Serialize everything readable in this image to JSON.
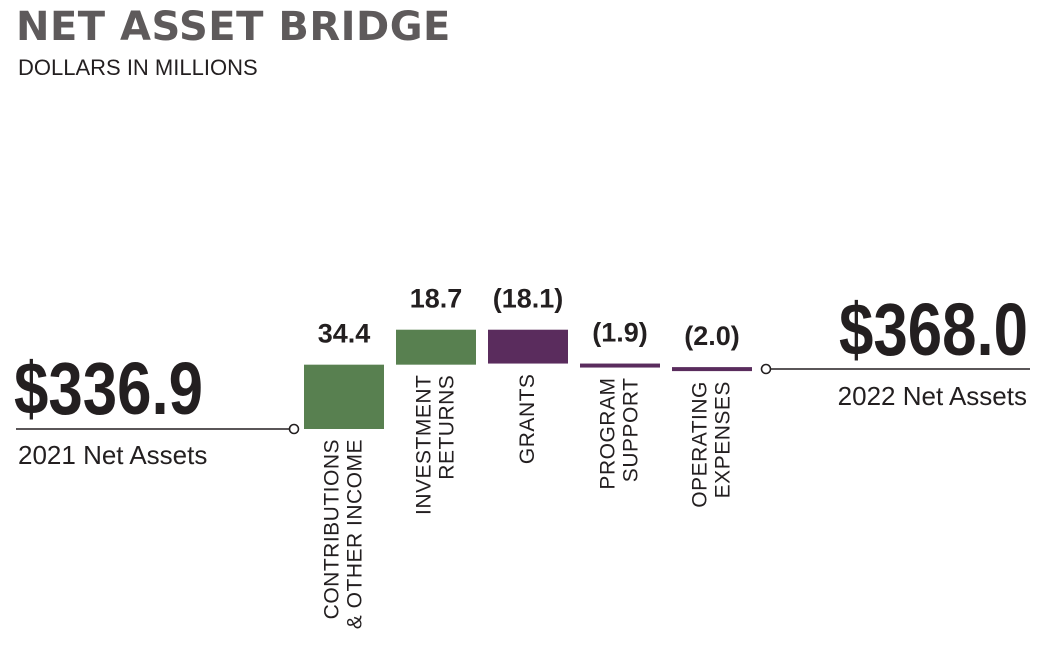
{
  "title": "NET ASSET BRIDGE",
  "subtitle": "DOLLARS IN MILLIONS",
  "colors": {
    "increase": "#588050",
    "decrease": "#5a2c5d",
    "text": "#231f20",
    "title": "#5e5a5b",
    "line": "#231f20"
  },
  "chart_data": {
    "type": "bar",
    "subtype": "waterfall",
    "title": "NET ASSET BRIDGE",
    "subtitle": "DOLLARS IN MILLIONS",
    "units": "DOLLARS IN MILLIONS",
    "start": {
      "label": "2021 Net Assets",
      "value": 336.9,
      "display": "$336.9"
    },
    "end": {
      "label": "2022 Net Assets",
      "value": 368.0,
      "display": "$368.0"
    },
    "steps": [
      {
        "label_lines": [
          "CONTRIBUTIONS",
          "& OTHER INCOME"
        ],
        "value": 34.4,
        "display": "34.4",
        "direction": "increase"
      },
      {
        "label_lines": [
          "INVESTMENT",
          "RETURNS"
        ],
        "value": 18.7,
        "display": "18.7",
        "direction": "increase"
      },
      {
        "label_lines": [
          "GRANTS"
        ],
        "value": -18.1,
        "display": "(18.1)",
        "direction": "decrease"
      },
      {
        "label_lines": [
          "PROGRAM",
          "SUPPORT"
        ],
        "value": -1.9,
        "display": "(1.9)",
        "direction": "decrease"
      },
      {
        "label_lines": [
          "OPERATING",
          "EXPENSES"
        ],
        "value": -2.0,
        "display": "(2.0)",
        "direction": "decrease"
      }
    ],
    "grid": false,
    "legend": "none"
  }
}
